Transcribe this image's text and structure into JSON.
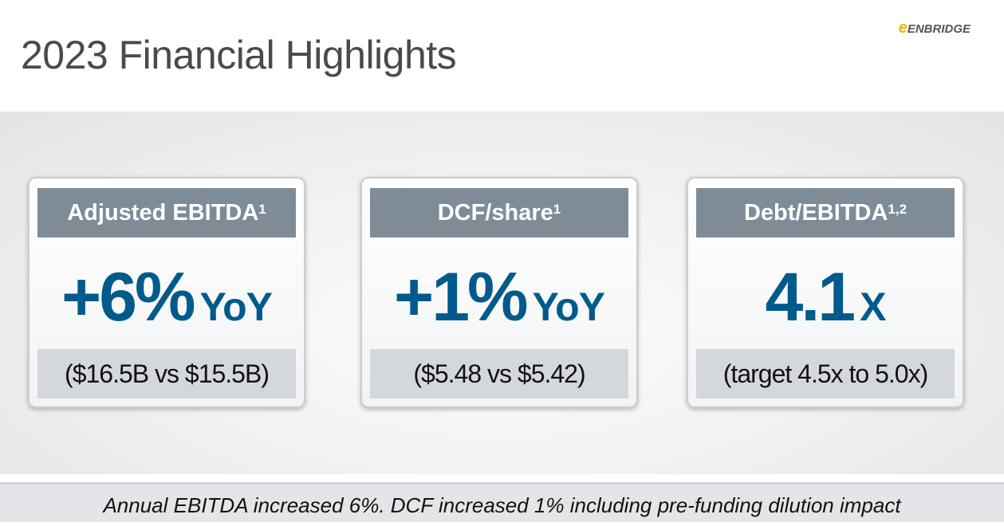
{
  "header": {
    "title": "2023 Financial Highlights",
    "logo": "ENBRIDGE"
  },
  "cards": [
    {
      "heading": "Adjusted EBITDA",
      "note": "1",
      "value": "+6%",
      "unit": "YoY",
      "detail": "($16.5B vs $15.5B)"
    },
    {
      "heading": "DCF/share",
      "note": "1",
      "value": "+1%",
      "unit": "YoY",
      "detail": "($5.48 vs $5.42)"
    },
    {
      "heading": "Debt/EBITDA",
      "note": "1,2",
      "value": "4.1",
      "unit": "X",
      "detail": "(target 4.5x to 5.0x)"
    }
  ],
  "footer": {
    "text": "Annual EBITDA increased 6%. DCF increased 1% including pre-funding dilution impact"
  }
}
